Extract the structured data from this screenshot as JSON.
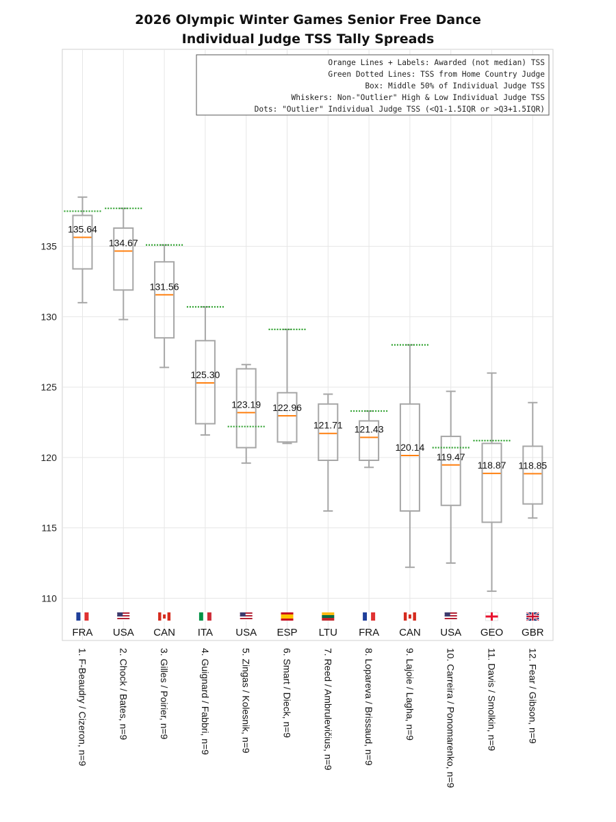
{
  "chart_data": {
    "type": "box",
    "title": "2026 Olympic Winter Games Senior  Free Dance",
    "subtitle": "Individual Judge TSS Tally Spreads",
    "ylim": [
      107,
      149
    ],
    "yticks": [
      110,
      115,
      120,
      125,
      130,
      135
    ],
    "grid": true,
    "legend": {
      "position": "top-right",
      "lines": [
        "Orange Lines + Labels: Awarded (not median) TSS",
        "Green Dotted Lines: TSS from Home Country Judge",
        "Box: Middle 50% of Individual Judge TSS",
        "Whiskers: Non-\"Outlier\" High & Low Individual Judge TSS",
        "Dots: \"Outlier\" Individual Judge TSS (<Q1-1.5IQR or >Q3+1.5IQR)"
      ]
    },
    "flag_colors": {
      "FRA": [
        "#1f3f9a",
        "#ffffff",
        "#e03131"
      ],
      "USA": [
        "#3c3b6e",
        "#b22234",
        "#ffffff"
      ],
      "CAN": [
        "#d52b1e",
        "#ffffff",
        "#d52b1e"
      ],
      "ITA": [
        "#009246",
        "#ffffff",
        "#ce2b37"
      ],
      "ESP": [
        "#c60b1e",
        "#ffc400",
        "#c60b1e"
      ],
      "LTU": [
        "#fdb913",
        "#006a44",
        "#c1272d"
      ],
      "GEO": [
        "#ffffff",
        "#e8112d",
        "#ffffff"
      ],
      "GBR": [
        "#012169",
        "#c8102e",
        "#ffffff"
      ]
    },
    "colors": {
      "box": "#a6a6a6",
      "awarded": "#ff7f0e",
      "home": "#2ca02c",
      "grid": "#e6e6e6"
    },
    "series": [
      {
        "label": "1. F-Beaudry / Cizeron, n=9",
        "country": "FRA",
        "awarded": 135.64,
        "awarded_label": "135.64",
        "q1": 133.4,
        "q3": 137.2,
        "whisker_low": 131.0,
        "whisker_high": 138.5,
        "home": 137.5
      },
      {
        "label": "2. Chock / Bates, n=9",
        "country": "USA",
        "awarded": 134.67,
        "awarded_label": "134.67",
        "q1": 131.9,
        "q3": 136.3,
        "whisker_low": 129.8,
        "whisker_high": 137.7,
        "home": 137.7
      },
      {
        "label": "3. Gilles / Poirier, n=9",
        "country": "CAN",
        "awarded": 131.56,
        "awarded_label": "131.56",
        "q1": 128.5,
        "q3": 133.9,
        "whisker_low": 126.4,
        "whisker_high": 135.1,
        "home": 135.1
      },
      {
        "label": "4. Guignard / Fabbri, n=9",
        "country": "ITA",
        "awarded": 125.3,
        "awarded_label": "125.30",
        "q1": 122.4,
        "q3": 128.3,
        "whisker_low": 121.6,
        "whisker_high": 130.7,
        "home": 130.7
      },
      {
        "label": "5. Zingas / Kolesnik, n=9",
        "country": "USA",
        "awarded": 123.19,
        "awarded_label": "123.19",
        "q1": 120.7,
        "q3": 126.3,
        "whisker_low": 119.6,
        "whisker_high": 126.6,
        "home": 122.2
      },
      {
        "label": "6. Smart / Dieck, n=9",
        "country": "ESP",
        "awarded": 122.96,
        "awarded_label": "122.96",
        "q1": 121.1,
        "q3": 124.6,
        "whisker_low": 121.0,
        "whisker_high": 129.1,
        "home": 129.1
      },
      {
        "label": "7. Reed / Ambrulevičius, n=9",
        "country": "LTU",
        "awarded": 121.71,
        "awarded_label": "121.71",
        "q1": 119.8,
        "q3": 123.8,
        "whisker_low": 116.2,
        "whisker_high": 124.5,
        "home": null
      },
      {
        "label": "8. Lopareva / Brissaud, n=9",
        "country": "FRA",
        "awarded": 121.43,
        "awarded_label": "121.43",
        "q1": 119.8,
        "q3": 122.6,
        "whisker_low": 119.3,
        "whisker_high": 123.3,
        "home": 123.3
      },
      {
        "label": "9. Lajoie / Lagha, n=9",
        "country": "CAN",
        "awarded": 120.14,
        "awarded_label": "120.14",
        "q1": 116.2,
        "q3": 123.8,
        "whisker_low": 112.2,
        "whisker_high": 128.0,
        "home": 128.0
      },
      {
        "label": "10. Carreira / Ponomarenko, n=9",
        "country": "USA",
        "awarded": 119.47,
        "awarded_label": "119.47",
        "q1": 116.6,
        "q3": 121.5,
        "whisker_low": 112.5,
        "whisker_high": 124.7,
        "home": 120.7
      },
      {
        "label": "11. Davis / Smolkin, n=9",
        "country": "GEO",
        "awarded": 118.87,
        "awarded_label": "118.87",
        "q1": 115.4,
        "q3": 121.0,
        "whisker_low": 110.5,
        "whisker_high": 126.0,
        "home": 121.2
      },
      {
        "label": "12. Fear / Gibson, n=9",
        "country": "GBR",
        "awarded": 118.85,
        "awarded_label": "118.85",
        "q1": 116.7,
        "q3": 120.8,
        "whisker_low": 115.7,
        "whisker_high": 123.9,
        "home": null
      }
    ]
  }
}
